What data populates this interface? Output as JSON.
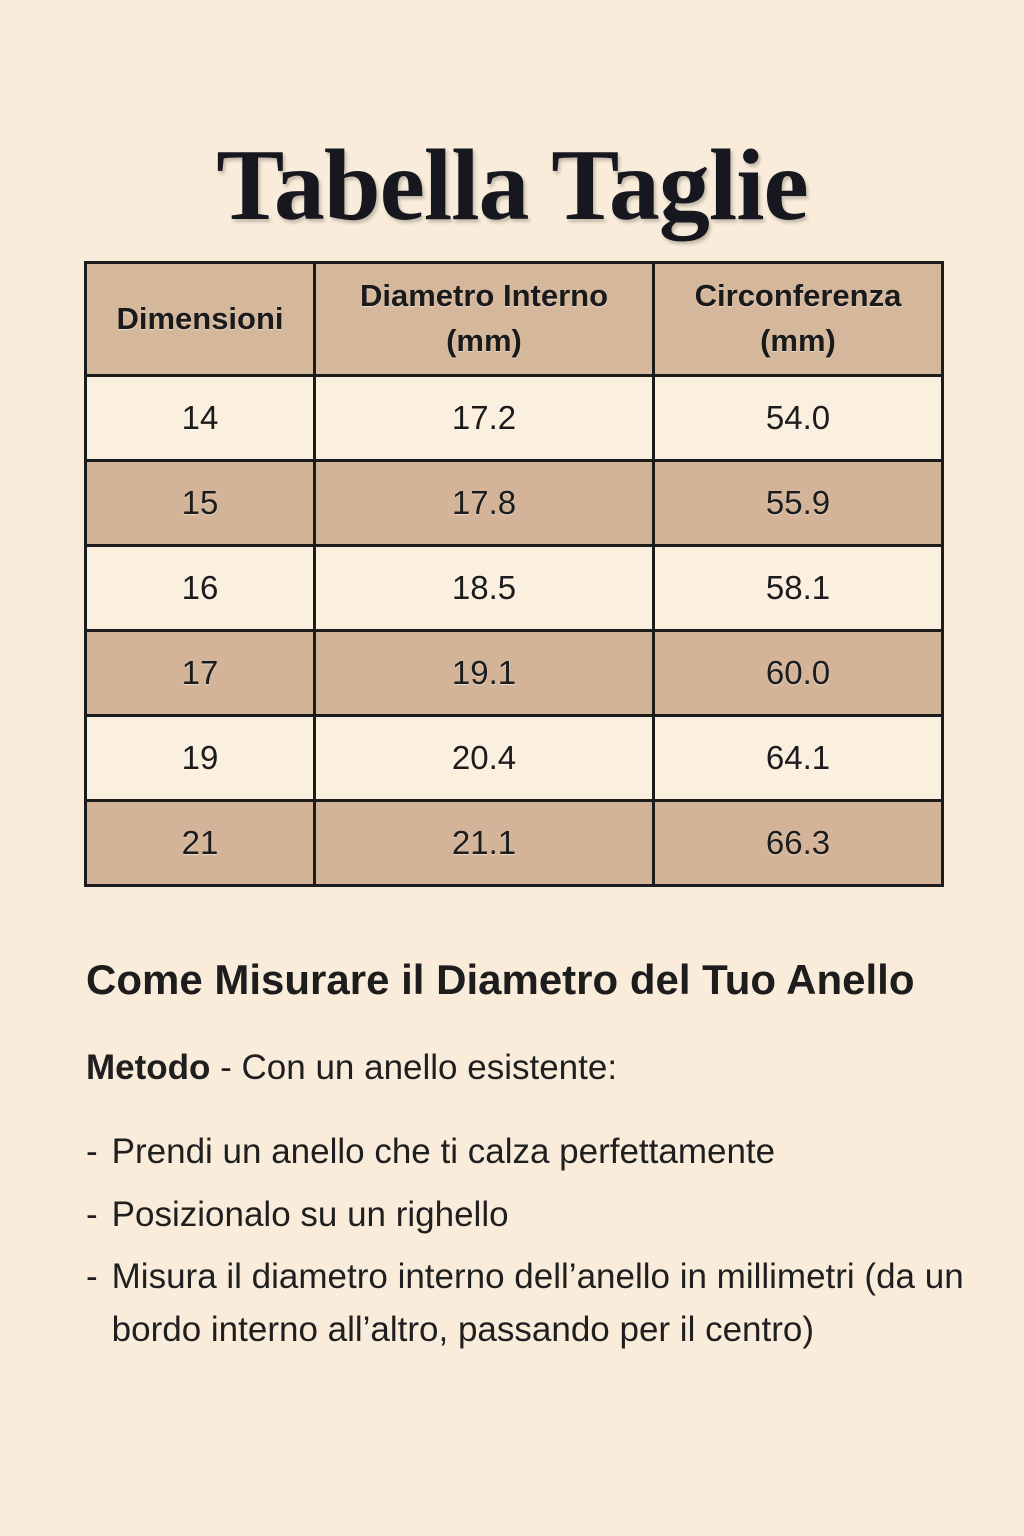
{
  "page": {
    "title": "Tabella Taglie"
  },
  "colors": {
    "page_background": "#f9ecdb",
    "table_header_background": "#d5b79c",
    "table_row_tan": "#d3b499",
    "table_row_cream": "#fbefe0",
    "table_border": "#1c1c1c",
    "text": "#1d1d1d"
  },
  "table": {
    "headers": [
      "Dimensioni",
      "Diametro Interno\n(mm)",
      "Circonferenza\n(mm)"
    ],
    "rows": [
      [
        "14",
        "17.2",
        "54.0"
      ],
      [
        "15",
        "17.8",
        "55.9"
      ],
      [
        "16",
        "18.5",
        "58.1"
      ],
      [
        "17",
        "19.1",
        "60.0"
      ],
      [
        "19",
        "20.4",
        "64.1"
      ],
      [
        "21",
        "21.1",
        "66.3"
      ]
    ]
  },
  "guide": {
    "heading": "Come Misurare il Diametro del Tuo Anello",
    "method_label": "Metodo",
    "method_rest": " - Con un anello esistente:",
    "bullet_marker": "-",
    "bullets": [
      "Prendi un anello che ti calza perfettamente",
      "Posizionalo su un righello",
      "Misura il diametro interno dell’anello in millimetri (da un bordo interno all’altro, passando per il centro)"
    ]
  }
}
